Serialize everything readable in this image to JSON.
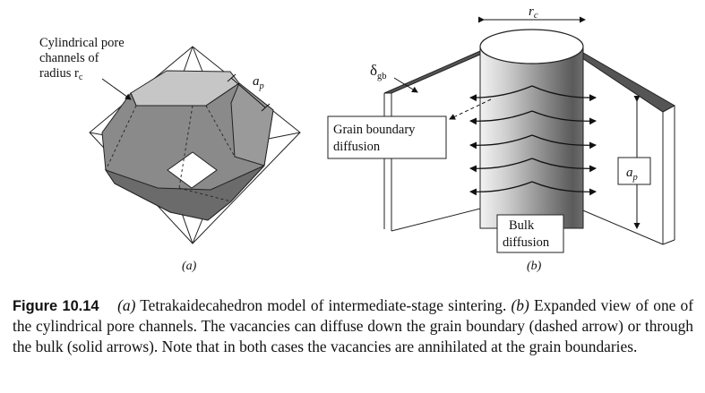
{
  "panel_a": {
    "label": "(a)",
    "pore_label_lines": [
      "Cylindrical pore",
      "channels of",
      "radius r"
    ],
    "pore_label_sub": "c",
    "ap_label": "a",
    "ap_sub": "p"
  },
  "panel_b": {
    "label": "(b)",
    "rc_label": "r",
    "rc_sub": "c",
    "delta_label": "δ",
    "delta_sub": "gb",
    "gb_diffusion_lines": [
      "Grain boundary",
      "diffusion"
    ],
    "ap_label": "a",
    "ap_sub": "p",
    "bulk_diffusion_lines": [
      "Bulk",
      "diffusion"
    ]
  },
  "caption": {
    "figure_number": "Figure 10.14",
    "part_a_tag": "(a)",
    "part_a_text": "Tetrakaidecahedron model of intermediate-stage sintering.",
    "part_b_tag": "(b)",
    "part_b_text": "Expanded view of one of the cylindrical pore channels. The vacancies can diffuse down the grain boundary (dashed arrow) or through the bulk (solid arrows). Note that in both cases the vacancies are annihilated at the grain boundaries."
  }
}
